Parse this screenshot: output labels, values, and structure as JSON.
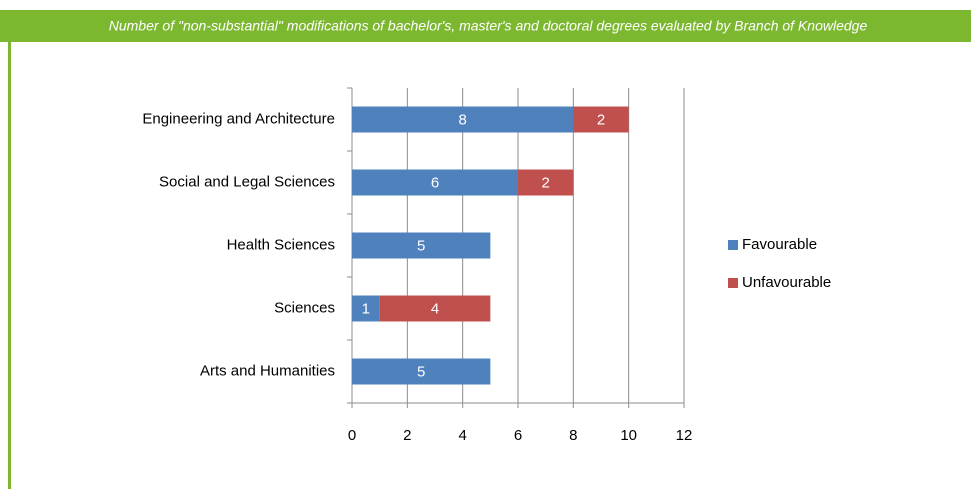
{
  "chart_data": {
    "type": "stacked_barh",
    "title": "Number of \"non-substantial\" modifications of bachelor's, master's and doctoral degrees evaluated by Branch of Knowledge",
    "categories": [
      "Engineering and Architecture",
      "Social and Legal Sciences",
      "Health Sciences",
      "Sciences",
      "Arts and Humanities"
    ],
    "series": [
      {
        "name": "Favourable",
        "color": "#4f81bd",
        "values": [
          8,
          6,
          5,
          1,
          5
        ]
      },
      {
        "name": "Unfavourable",
        "color": "#c0504d",
        "values": [
          2,
          2,
          0,
          4,
          0
        ]
      }
    ],
    "xlim": [
      0,
      12
    ],
    "xticks": [
      0,
      2,
      4,
      6,
      8,
      10,
      12
    ],
    "grid": true,
    "legend": "right"
  }
}
